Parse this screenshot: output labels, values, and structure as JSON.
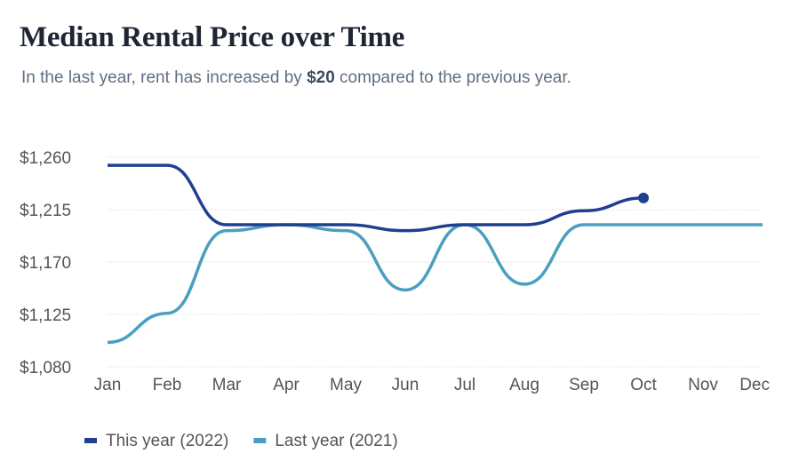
{
  "chart_data": {
    "type": "line",
    "title": "Median Rental Price over Time",
    "subtitle": [
      "In the last year, rent has increased by ",
      "$20",
      " compared to the previous year."
    ],
    "categories": [
      "Jan",
      "Feb",
      "Mar",
      "Apr",
      "May",
      "Jun",
      "Jul",
      "Aug",
      "Sep",
      "Oct",
      "Nov",
      "Dec"
    ],
    "series": [
      {
        "name": "This year (2022)",
        "color": "#1f3f8f",
        "values": [
          1253,
          1253,
          1202,
          1202,
          1202,
          1197,
          1202,
          1202,
          1214,
          1225,
          null,
          null
        ]
      },
      {
        "name": "Last year (2021)",
        "color": "#4a9fc0",
        "values": [
          1101,
          1126,
          1197,
          1202,
          1197,
          1146,
          1202,
          1151,
          1202,
          1202,
          1202,
          1202
        ]
      }
    ],
    "ylim": [
      1080,
      1260
    ],
    "yticks": [
      {
        "value": 1080,
        "label": "$1,080"
      },
      {
        "value": 1125,
        "label": "$1,125"
      },
      {
        "value": 1170,
        "label": "$1,170"
      },
      {
        "value": 1215,
        "label": "$1,215"
      },
      {
        "value": 1260,
        "label": "$1,260"
      }
    ],
    "grid": true
  }
}
